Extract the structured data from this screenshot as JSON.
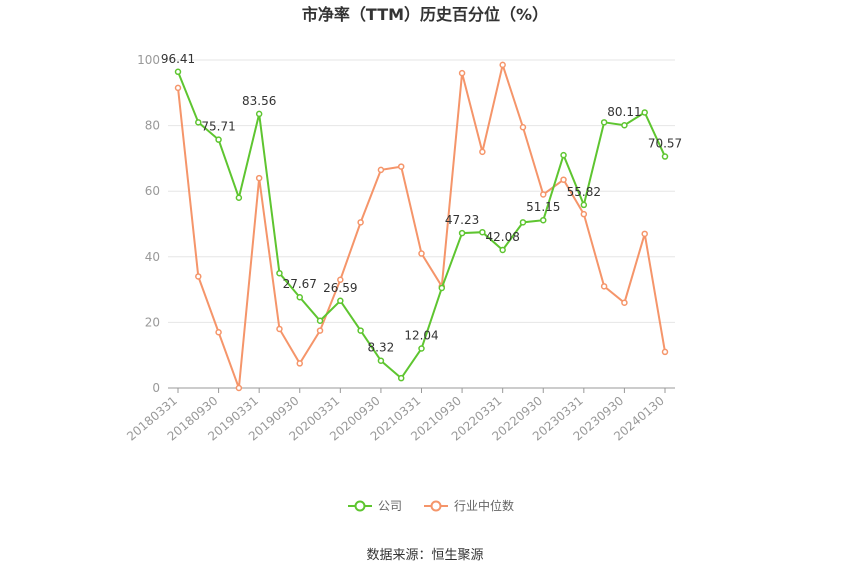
{
  "chart_data": {
    "type": "line",
    "title": "市净率（TTM）历史百分位（%）",
    "source": "数据来源：恒生聚源",
    "ylim": [
      0,
      100
    ],
    "yticks": [
      0,
      20,
      40,
      60,
      80,
      100
    ],
    "grid": true,
    "legend_position": "bottom",
    "x": [
      "20180331",
      "20180630",
      "20180930",
      "20181231",
      "20190331",
      "20190630",
      "20190930",
      "20191231",
      "20200331",
      "20200630",
      "20200930",
      "20201231",
      "20210331",
      "20210630",
      "20210930",
      "20211231",
      "20220331",
      "20220630",
      "20220930",
      "20221231",
      "20230331",
      "20230630",
      "20230930",
      "20231231",
      "20240130"
    ],
    "x_tick_labels": [
      "20180331",
      "20180930",
      "20190331",
      "20190930",
      "20200331",
      "20200930",
      "20210331",
      "20210930",
      "20220331",
      "20220930",
      "20230331",
      "20230930",
      "20240130"
    ],
    "series": [
      {
        "name": "公司",
        "color": "#5ec530",
        "values": [
          96.41,
          81.0,
          75.71,
          58.0,
          83.56,
          35.0,
          27.67,
          20.5,
          26.59,
          17.5,
          8.32,
          3.0,
          12.04,
          30.5,
          47.23,
          47.5,
          42.08,
          50.5,
          51.15,
          71.0,
          55.82,
          81.0,
          80.11,
          84.0,
          70.57
        ],
        "labels": {
          "0": "96.41",
          "2": "75.71",
          "4": "83.56",
          "6": "27.67",
          "8": "26.59",
          "10": "8.32",
          "12": "12.04",
          "14": "47.23",
          "16": "42.08",
          "18": "51.15",
          "20": "55.82",
          "22": "80.11",
          "24": "70.57"
        }
      },
      {
        "name": "行业中位数",
        "color": "#f5956a",
        "values": [
          91.5,
          34.0,
          17.0,
          0.0,
          64.0,
          18.0,
          7.5,
          17.5,
          33.0,
          50.5,
          66.5,
          67.5,
          41.0,
          31.0,
          96.0,
          72.0,
          98.5,
          79.5,
          59.0,
          63.5,
          53.0,
          31.0,
          26.0,
          47.0,
          11.0
        ]
      }
    ]
  }
}
